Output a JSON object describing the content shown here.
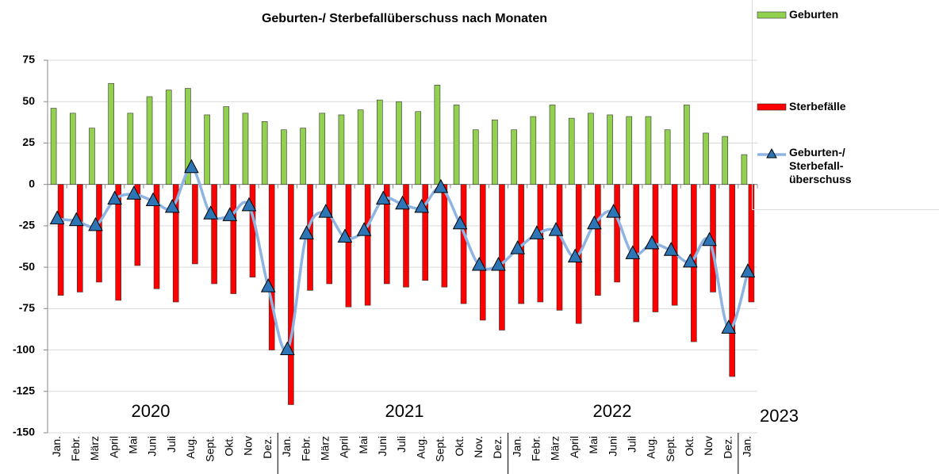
{
  "chart_data": {
    "type": "bar-line",
    "title": "Geburten-/ Sterbefallüberschuss nach Monaten",
    "categories": [
      "Jan.",
      "Febr.",
      "März",
      "April",
      "Mai",
      "Juni",
      "Juli",
      "Aug.",
      "Sept.",
      "Okt.",
      "Nov",
      "Dez.",
      "Jan.",
      "Febr.",
      "März",
      "April",
      "Mai",
      "Juni",
      "Juli",
      "Aug.",
      "Sept.",
      "Okt.",
      "Nov.",
      "Dez.",
      "Jan.",
      "Febr.",
      "März",
      "April",
      "Mai",
      "Juni",
      "Juli",
      "Aug.",
      "Sept.",
      "Okt.",
      "Nov",
      "Dez.",
      "Jan."
    ],
    "years": [
      "2020",
      "2021",
      "2022",
      "2023"
    ],
    "series": [
      {
        "name": "Geburten",
        "type": "bar",
        "color": "#92d050",
        "values": [
          46,
          43,
          34,
          61,
          43,
          53,
          57,
          58,
          42,
          47,
          43,
          38,
          33,
          34,
          43,
          42,
          45,
          51,
          50,
          44,
          60,
          48,
          33,
          39,
          33,
          41,
          48,
          40,
          43,
          42,
          41,
          41,
          33,
          48,
          31,
          29,
          18
        ]
      },
      {
        "name": "Sterbefälle",
        "type": "bar",
        "color": "#ff0000",
        "values": [
          -67,
          -65,
          -59,
          -70,
          -49,
          -63,
          -71,
          -48,
          -60,
          -66,
          -56,
          -100,
          -133,
          -64,
          -60,
          -74,
          -73,
          -60,
          -62,
          -58,
          -62,
          -72,
          -82,
          -88,
          -72,
          -71,
          -76,
          -84,
          -67,
          -59,
          -83,
          -77,
          -73,
          -95,
          -65,
          -116,
          -71
        ]
      },
      {
        "name": "Geburten-/ Sterbefall-überschuss",
        "type": "line",
        "color": "#8db4e2",
        "marker_color": "#2e75b6",
        "values": [
          -21,
          -22,
          -25,
          -9,
          -6,
          -10,
          -14,
          10,
          -18,
          -19,
          -13,
          -62,
          -100,
          -30,
          -17,
          -32,
          -28,
          -9,
          -12,
          -14,
          -2,
          -24,
          -49,
          -49,
          -39,
          -30,
          -28,
          -44,
          -24,
          -17,
          -42,
          -36,
          -40,
          -47,
          -34,
          -87,
          -53
        ]
      }
    ],
    "ylim": [
      -150,
      75
    ],
    "yticks": [
      75,
      50,
      25,
      0,
      -25,
      -50,
      -75,
      -100,
      -125,
      -150
    ],
    "grid": true,
    "legend": "right"
  }
}
